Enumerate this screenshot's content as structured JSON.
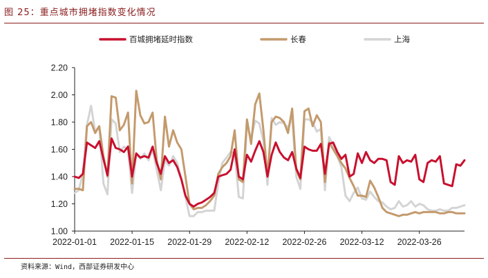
{
  "figure": {
    "title": "图 25：重点城市拥堵指数变化情况",
    "source": "资料来源：Wind，西部证券研发中心"
  },
  "colors": {
    "title": "#8a1b1b",
    "series": [
      "#c8102e",
      "#c49a6c",
      "#d4d4d4"
    ]
  },
  "chart_data": {
    "type": "line",
    "title": "重点城市拥堵指数变化情况",
    "xlabel": "",
    "ylabel": "",
    "ylim": [
      1.0,
      2.2
    ],
    "yticks": [
      "1.00",
      "1.20",
      "1.40",
      "1.60",
      "1.80",
      "2.00",
      "2.20"
    ],
    "xticks": [
      "2022-01-01",
      "2022-01-15",
      "2022-01-29",
      "2022-02-12",
      "2022-02-26",
      "2022-03-12",
      "2022-03-26"
    ],
    "xtick_days": [
      0,
      14,
      28,
      42,
      56,
      70,
      84
    ],
    "grid": false,
    "legend_position": "top",
    "x": [
      0,
      1,
      2,
      3,
      4,
      5,
      6,
      7,
      8,
      9,
      10,
      11,
      12,
      13,
      14,
      15,
      16,
      17,
      18,
      19,
      20,
      21,
      22,
      23,
      24,
      25,
      26,
      27,
      28,
      29,
      30,
      31,
      32,
      33,
      34,
      35,
      36,
      37,
      38,
      39,
      40,
      41,
      42,
      43,
      44,
      45,
      46,
      47,
      48,
      49,
      50,
      51,
      52,
      53,
      54,
      55,
      56,
      57,
      58,
      59,
      60,
      61,
      62,
      63,
      64,
      65,
      66,
      67,
      68,
      69,
      70,
      71,
      72,
      73,
      74,
      75,
      76,
      77,
      78,
      79,
      80,
      81,
      82,
      83,
      84,
      85,
      86,
      87,
      88,
      89,
      90,
      91,
      92,
      93,
      94,
      95
    ],
    "series": [
      {
        "name": "百城拥堵延时指数",
        "color": "#c8102e",
        "values": [
          1.4,
          1.39,
          1.42,
          1.65,
          1.63,
          1.61,
          1.66,
          1.53,
          1.41,
          1.68,
          1.61,
          1.6,
          1.58,
          1.62,
          1.4,
          1.57,
          1.54,
          1.55,
          1.54,
          1.62,
          1.5,
          1.42,
          1.55,
          1.5,
          1.52,
          1.47,
          1.38,
          1.26,
          1.2,
          1.18,
          1.2,
          1.21,
          1.23,
          1.25,
          1.28,
          1.4,
          1.41,
          1.42,
          1.45,
          1.6,
          1.4,
          1.38,
          1.56,
          1.51,
          1.59,
          1.66,
          1.58,
          1.4,
          1.56,
          1.65,
          1.58,
          1.54,
          1.52,
          1.58,
          1.46,
          1.39,
          1.62,
          1.6,
          1.59,
          1.59,
          1.64,
          1.42,
          1.64,
          1.65,
          1.58,
          1.53,
          1.56,
          1.4,
          1.42,
          1.57,
          1.5,
          1.58,
          1.52,
          1.5,
          1.53,
          1.53,
          1.52,
          1.36,
          1.34,
          1.55,
          1.5,
          1.52,
          1.51,
          1.56,
          1.38,
          1.36,
          1.5,
          1.52,
          1.51,
          1.55,
          1.35,
          1.34,
          1.33,
          1.49,
          1.48,
          1.52
        ]
      },
      {
        "name": "长春",
        "color": "#c49a6c",
        "values": [
          1.31,
          1.31,
          1.3,
          1.77,
          1.8,
          1.72,
          1.77,
          1.55,
          1.4,
          1.99,
          1.98,
          1.74,
          1.78,
          1.87,
          1.35,
          2.03,
          1.85,
          1.79,
          1.8,
          1.87,
          1.52,
          1.38,
          1.84,
          1.62,
          1.74,
          1.65,
          1.6,
          1.4,
          1.2,
          1.16,
          1.17,
          1.17,
          1.19,
          1.22,
          1.26,
          1.42,
          1.47,
          1.5,
          1.55,
          1.74,
          1.38,
          1.36,
          1.82,
          1.64,
          1.93,
          2.01,
          1.74,
          1.4,
          1.8,
          1.84,
          1.83,
          1.8,
          1.72,
          1.9,
          1.45,
          1.38,
          1.88,
          1.9,
          1.77,
          1.85,
          1.8,
          1.36,
          1.65,
          1.6,
          1.55,
          1.5,
          1.46,
          1.39,
          1.33,
          1.26,
          1.26,
          1.25,
          1.37,
          1.32,
          1.25,
          1.17,
          1.14,
          1.13,
          1.12,
          1.11,
          1.12,
          1.12,
          1.13,
          1.14,
          1.13,
          1.14,
          1.14,
          1.14,
          1.14,
          1.13,
          1.13,
          1.14,
          1.14,
          1.13,
          1.13,
          1.13
        ]
      },
      {
        "name": "上海",
        "color": "#d4d4d4",
        "values": [
          1.28,
          1.3,
          1.42,
          1.78,
          1.92,
          1.73,
          1.77,
          1.35,
          1.27,
          1.82,
          1.79,
          1.58,
          1.62,
          1.6,
          1.28,
          1.57,
          1.53,
          1.57,
          1.52,
          1.6,
          1.45,
          1.3,
          1.52,
          1.48,
          1.55,
          1.5,
          1.38,
          1.25,
          1.11,
          1.11,
          1.14,
          1.14,
          1.15,
          1.15,
          1.15,
          1.35,
          1.5,
          1.54,
          1.58,
          1.57,
          1.25,
          1.24,
          1.78,
          1.68,
          1.81,
          1.79,
          1.66,
          1.34,
          1.83,
          1.78,
          1.8,
          1.79,
          1.76,
          1.83,
          1.4,
          1.31,
          1.82,
          1.82,
          1.8,
          1.73,
          1.75,
          1.3,
          1.69,
          1.63,
          1.55,
          1.47,
          1.26,
          1.22,
          1.28,
          1.32,
          1.24,
          1.23,
          1.29,
          1.25,
          1.22,
          1.21,
          1.18,
          1.16,
          1.17,
          1.22,
          1.18,
          1.19,
          1.22,
          1.18,
          1.2,
          1.19,
          1.16,
          1.15,
          1.15,
          1.16,
          1.15,
          1.15,
          1.17,
          1.17,
          1.18,
          1.19
        ]
      }
    ]
  }
}
